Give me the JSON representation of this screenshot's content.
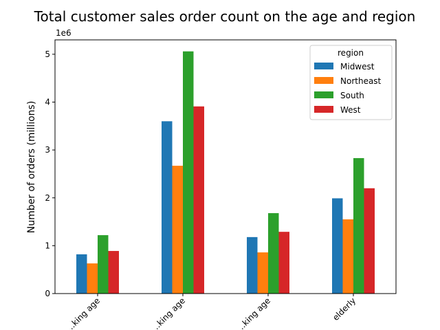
{
  "chart_data": {
    "type": "bar",
    "title": "Total customer sales order count on the age and region",
    "xlabel": "",
    "ylabel": "Number of orders (millions)",
    "y_offset_label": "1e6",
    "ylim": [
      0,
      5.3
    ],
    "yticks": [
      "0",
      "1",
      "2",
      "3",
      "4",
      "5"
    ],
    "categories": [
      "...king age",
      "...king age",
      "...king age",
      "elderly"
    ],
    "legend": {
      "title": "region",
      "placement": "top-right"
    },
    "grid": false,
    "series": [
      {
        "name": "Midwest",
        "color": "#1f77b4",
        "values": [
          0.82,
          3.6,
          1.18,
          1.99
        ]
      },
      {
        "name": "Northeast",
        "color": "#ff7f0e",
        "values": [
          0.63,
          2.67,
          0.86,
          1.55
        ]
      },
      {
        "name": "South",
        "color": "#2ca02c",
        "values": [
          1.22,
          5.06,
          1.68,
          2.83
        ]
      },
      {
        "name": "West",
        "color": "#d62728",
        "values": [
          0.89,
          3.91,
          1.29,
          2.2
        ]
      }
    ]
  }
}
